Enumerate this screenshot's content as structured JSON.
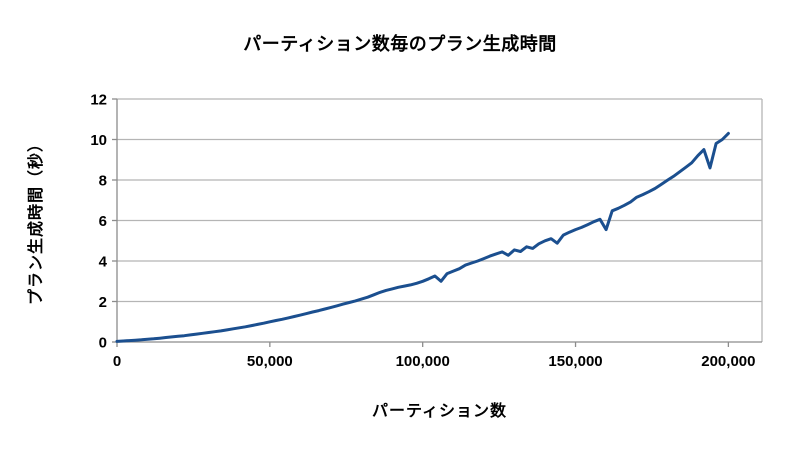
{
  "chart_data": {
    "type": "line",
    "title": "パーティション数毎のプラン生成時間",
    "xlabel": "パーティション数",
    "ylabel": "プラン生成時間（秒）",
    "xlim": [
      0,
      211000
    ],
    "ylim": [
      0,
      12
    ],
    "grid": true,
    "legend": false,
    "x_ticks": {
      "values": [
        0,
        50000,
        100000,
        150000,
        200000
      ],
      "labels": [
        "0",
        "50,000",
        "100,000",
        "150,000",
        "200,000"
      ]
    },
    "y_ticks": {
      "values": [
        0,
        2,
        4,
        6,
        8,
        10,
        12
      ],
      "labels": [
        "0",
        "2",
        "4",
        "6",
        "8",
        "10",
        "12"
      ]
    },
    "colors": {
      "line": "#1b4f8f",
      "gridline": "#b5b5b5",
      "axis": "#8c8c8c",
      "text": "#000000",
      "background": "#ffffff"
    },
    "series": [
      {
        "name": "プラン生成時間",
        "color": "#1b4f8f",
        "x": [
          0,
          2000,
          4000,
          6000,
          8000,
          10000,
          12000,
          14000,
          16000,
          18000,
          20000,
          22000,
          24000,
          26000,
          28000,
          30000,
          32000,
          34000,
          36000,
          38000,
          40000,
          42000,
          44000,
          46000,
          48000,
          50000,
          52000,
          54000,
          56000,
          58000,
          60000,
          62000,
          64000,
          66000,
          68000,
          70000,
          72000,
          74000,
          76000,
          78000,
          80000,
          82000,
          84000,
          86000,
          88000,
          90000,
          92000,
          94000,
          96000,
          98000,
          100000,
          102000,
          104000,
          106000,
          108000,
          110000,
          112000,
          114000,
          116000,
          118000,
          120000,
          122000,
          124000,
          126000,
          128000,
          130000,
          132000,
          134000,
          136000,
          138000,
          140000,
          142000,
          144000,
          146000,
          148000,
          150000,
          152000,
          154000,
          156000,
          158000,
          160000,
          162000,
          164000,
          166000,
          168000,
          170000,
          172000,
          174000,
          176000,
          178000,
          180000,
          182000,
          184000,
          186000,
          188000,
          190000,
          192000,
          194000,
          196000,
          198000,
          200000
        ],
        "y": [
          0.03,
          0.05,
          0.07,
          0.09,
          0.11,
          0.14,
          0.16,
          0.19,
          0.22,
          0.25,
          0.28,
          0.31,
          0.35,
          0.39,
          0.43,
          0.47,
          0.51,
          0.55,
          0.6,
          0.65,
          0.7,
          0.75,
          0.81,
          0.87,
          0.93,
          1.0,
          1.06,
          1.12,
          1.19,
          1.26,
          1.33,
          1.4,
          1.48,
          1.55,
          1.63,
          1.71,
          1.79,
          1.87,
          1.95,
          2.03,
          2.12,
          2.21,
          2.33,
          2.45,
          2.55,
          2.62,
          2.7,
          2.76,
          2.82,
          2.9,
          3.0,
          3.12,
          3.26,
          3.0,
          3.38,
          3.5,
          3.62,
          3.8,
          3.9,
          4.0,
          4.12,
          4.24,
          4.35,
          4.45,
          4.28,
          4.55,
          4.47,
          4.7,
          4.62,
          4.85,
          5.0,
          5.1,
          4.88,
          5.28,
          5.42,
          5.55,
          5.66,
          5.8,
          5.94,
          6.06,
          5.55,
          6.48,
          6.6,
          6.75,
          6.92,
          7.15,
          7.28,
          7.42,
          7.58,
          7.78,
          7.98,
          8.18,
          8.4,
          8.62,
          8.85,
          9.2,
          9.5,
          8.6,
          9.8,
          10.0,
          10.3
        ]
      }
    ]
  }
}
